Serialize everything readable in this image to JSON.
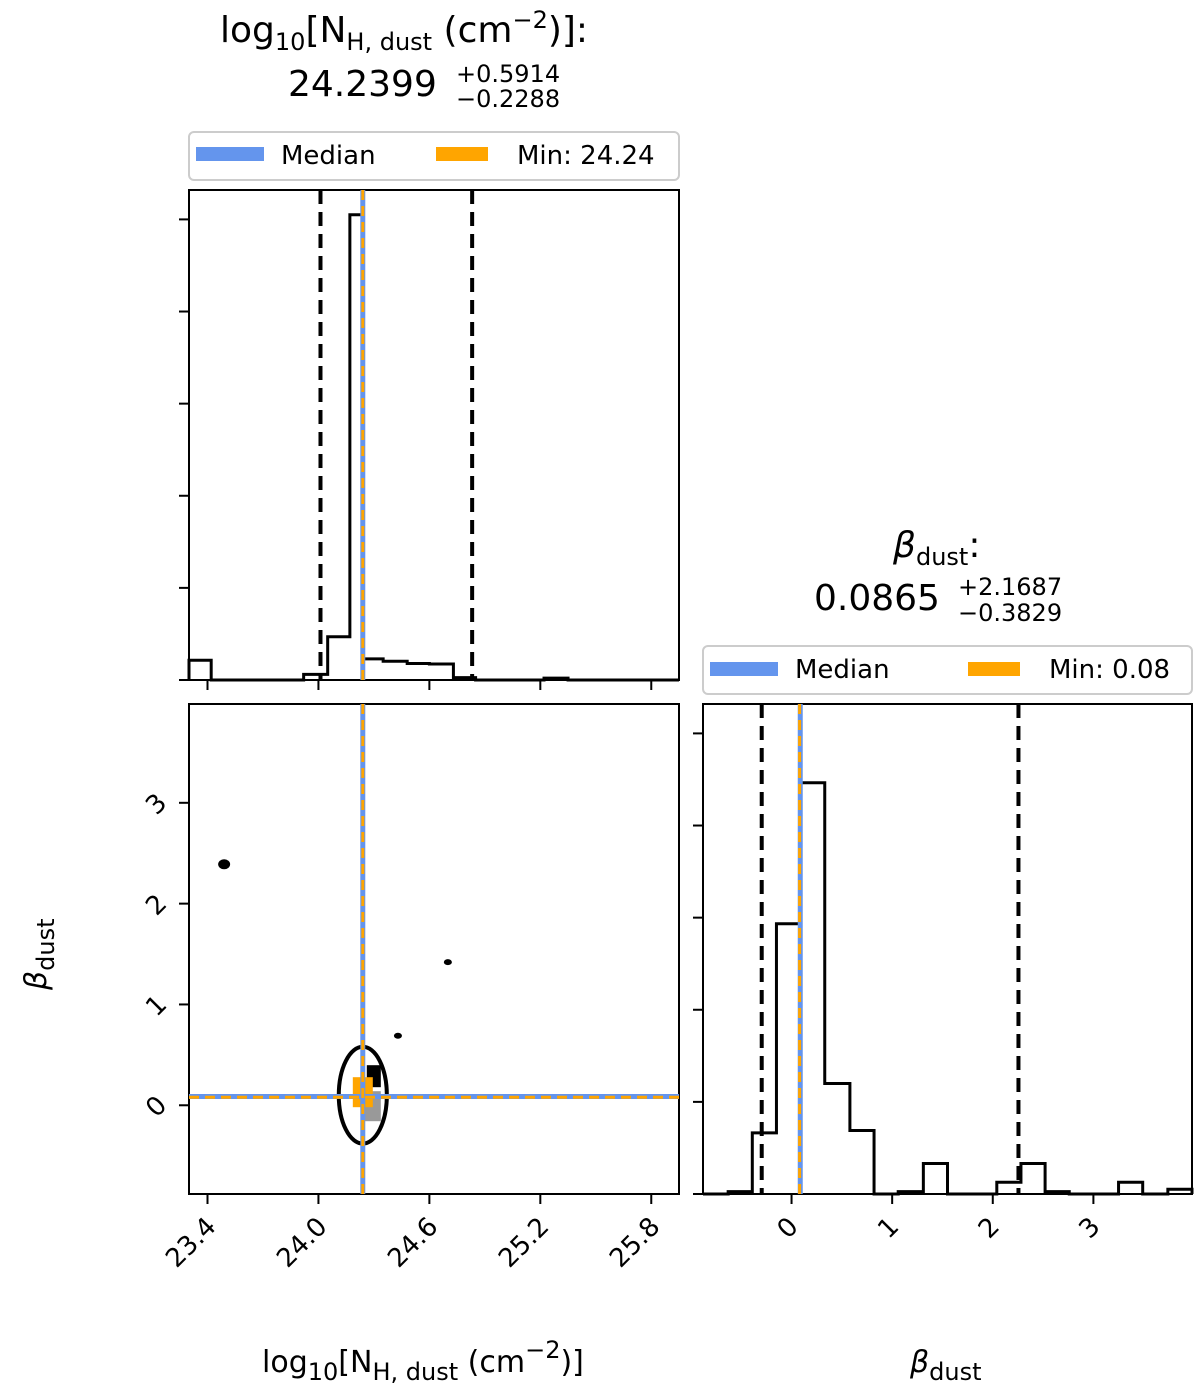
{
  "colors": {
    "median": "#6495ED",
    "min": "#FFA500",
    "hist": "#000000",
    "quantile": "#000000"
  },
  "chart_data": [
    {
      "type": "bar",
      "subplot": "marginal-1d",
      "title": {
        "line1": "log",
        "line1_sub10": "10",
        "line1_bracket": "[N",
        "line1_sub": "H, dust",
        "line1_unit": " (cm",
        "line1_sup": "−2",
        "line1_end": ")]:",
        "value": "24.2399",
        "plus": "+0.5914",
        "minus": "−0.2288"
      },
      "legend": {
        "median_label": "Median",
        "min_label": "Min: 24.24",
        "placement": "top"
      },
      "xlim": [
        23.3,
        25.95
      ],
      "ylim": [
        0,
        1.0
      ],
      "bin_edges": [
        23.3,
        23.42,
        23.55,
        23.67,
        23.8,
        23.92,
        24.05,
        24.17,
        24.24,
        24.35,
        24.48,
        24.6,
        24.73,
        24.85,
        24.98,
        25.1,
        25.22,
        25.35,
        25.47,
        25.6,
        25.72,
        25.85,
        25.95
      ],
      "counts": [
        0.042,
        0.0,
        0.0,
        0.0,
        0.0,
        0.012,
        0.092,
        0.99,
        0.045,
        0.04,
        0.035,
        0.034,
        0.005,
        0.0,
        0.0,
        0.0,
        0.004,
        0.0,
        0.0,
        0.0,
        0.0,
        0.0
      ],
      "median": 24.2399,
      "min": 24.24,
      "quantiles": [
        24.0111,
        24.8313
      ]
    },
    {
      "type": "scatter",
      "subplot": "joint-2d",
      "xlabel": {
        "main": "log",
        "sub10": "10",
        "bracket": "[N",
        "sub": "H, dust",
        "unit": " (cm",
        "sup": "−2",
        "end": ")]"
      },
      "ylabel": {
        "main": "β",
        "sub": "dust"
      },
      "xlim": [
        23.3,
        25.95
      ],
      "ylim": [
        -0.88,
        3.98
      ],
      "xticks": [
        "23.4",
        "24.0",
        "24.6",
        "25.2",
        "25.8"
      ],
      "xtick_values": [
        23.4,
        24.0,
        24.6,
        25.2,
        25.8
      ],
      "yticks": [
        "0",
        "1",
        "2",
        "3"
      ],
      "ytick_values": [
        0,
        1,
        2,
        3
      ],
      "contour_center": [
        24.24,
        0.1
      ],
      "contour_radius": [
        0.13,
        0.48
      ],
      "islands": [
        {
          "x": 23.49,
          "y": 2.39
        },
        {
          "x": 24.7,
          "y": 1.42
        },
        {
          "x": 24.43,
          "y": 0.69
        }
      ],
      "median": [
        24.2399,
        0.0865
      ],
      "min": [
        24.24,
        0.08
      ]
    },
    {
      "type": "bar",
      "subplot": "marginal-1d",
      "title": {
        "symbol": "β",
        "sub": "dust",
        "colon": ":",
        "value": "0.0865",
        "plus": "+2.1687",
        "minus": "−0.3829"
      },
      "xlabel": {
        "main": "β",
        "sub": "dust"
      },
      "legend": {
        "median_label": "Median",
        "min_label": "Min: 0.08",
        "placement": "top"
      },
      "xlim": [
        -0.88,
        3.98
      ],
      "ylim": [
        0,
        1.0
      ],
      "xticks": [
        "0",
        "1",
        "2",
        "3"
      ],
      "xtick_values": [
        0,
        1,
        2,
        3
      ],
      "bin_edges": [
        -0.88,
        -0.63,
        -0.39,
        -0.15,
        0.09,
        0.33,
        0.58,
        0.82,
        1.06,
        1.31,
        1.55,
        1.79,
        2.04,
        2.28,
        2.52,
        2.76,
        3.01,
        3.25,
        3.49,
        3.74,
        3.98
      ],
      "counts": [
        0.0,
        0.005,
        0.13,
        0.575,
        0.875,
        0.235,
        0.135,
        0.0,
        0.005,
        0.065,
        0.0,
        0.0,
        0.025,
        0.065,
        0.005,
        0.0,
        0.0,
        0.025,
        0.0,
        0.01
      ],
      "median": 0.0865,
      "min": 0.08,
      "quantiles": [
        -0.2964,
        2.2552
      ]
    }
  ]
}
